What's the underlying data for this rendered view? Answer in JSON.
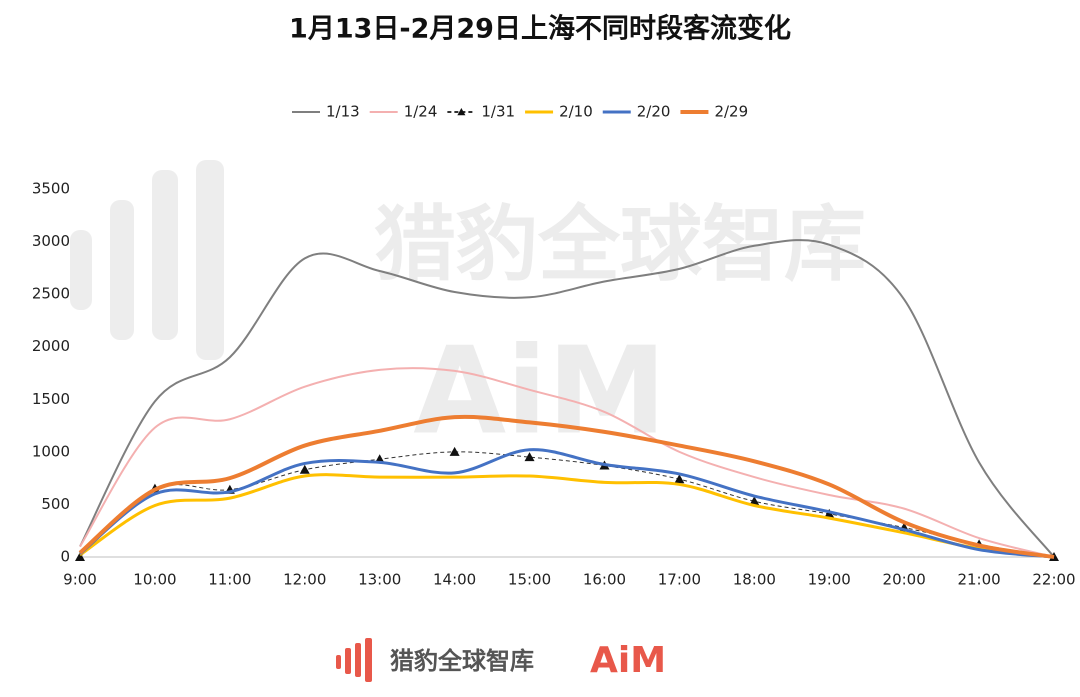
{
  "chart_data": {
    "type": "line",
    "title": "1月13日-2月29日上海不同时段客流变化",
    "watermark_text": "猎豹全球智库",
    "watermark_logo": "AiM",
    "brand_name": "猎豹全球智库",
    "brand_logo": "AiM",
    "categories": [
      "9:00",
      "10:00",
      "11:00",
      "12:00",
      "13:00",
      "14:00",
      "15:00",
      "16:00",
      "17:00",
      "18:00",
      "19:00",
      "20:00",
      "21:00",
      "22:00"
    ],
    "ylim": [
      0,
      3500
    ],
    "yticks": [
      0,
      500,
      1000,
      1500,
      2000,
      2500,
      3000,
      3500
    ],
    "legend": "top",
    "series": [
      {
        "name": "1/13",
        "color": "#7f7f7f",
        "line_width": 2,
        "values": [
          100,
          1480,
          1900,
          2840,
          2720,
          2520,
          2470,
          2620,
          2740,
          2960,
          2970,
          2450,
          900,
          0
        ]
      },
      {
        "name": "1/24",
        "color": "#f4b0b0",
        "line_width": 2,
        "values": [
          100,
          1230,
          1310,
          1620,
          1780,
          1770,
          1590,
          1380,
          1000,
          760,
          590,
          460,
          180,
          0
        ]
      },
      {
        "name": "1/31",
        "color": "#333333",
        "line_width": 1,
        "dashed": true,
        "marker": "triangle",
        "values": [
          0,
          650,
          640,
          830,
          930,
          1000,
          950,
          870,
          740,
          530,
          410,
          280,
          120,
          0
        ]
      },
      {
        "name": "2/10",
        "color": "#ffc000",
        "line_width": 3,
        "values": [
          20,
          490,
          560,
          770,
          760,
          760,
          770,
          710,
          690,
          490,
          370,
          230,
          80,
          0
        ]
      },
      {
        "name": "2/20",
        "color": "#4472c4",
        "line_width": 3,
        "values": [
          30,
          600,
          620,
          890,
          900,
          800,
          1020,
          880,
          790,
          580,
          430,
          260,
          70,
          0
        ]
      },
      {
        "name": "2/29",
        "color": "#ed7d31",
        "line_width": 4,
        "values": [
          40,
          640,
          750,
          1060,
          1200,
          1330,
          1280,
          1190,
          1060,
          910,
          690,
          330,
          110,
          0
        ]
      }
    ]
  }
}
